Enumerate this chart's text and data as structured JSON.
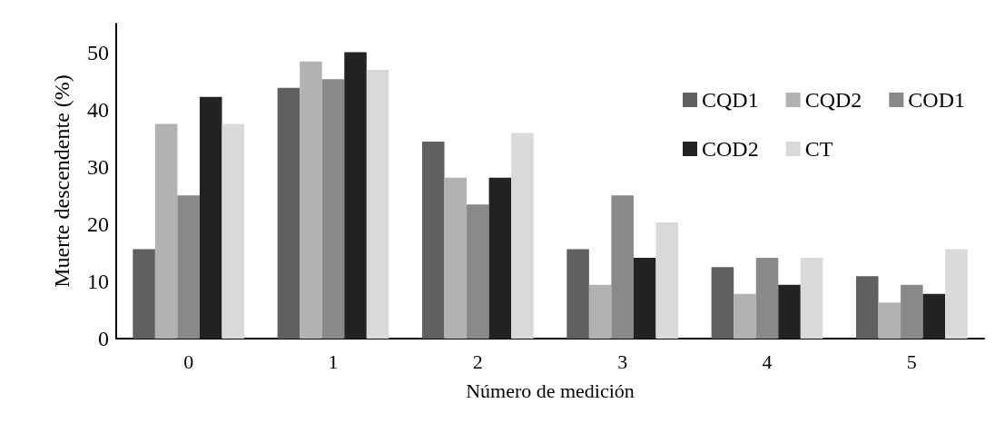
{
  "chart_data": {
    "type": "bar",
    "xlabel": "Número de medición",
    "ylabel": "Muerte descendente (%)",
    "categories": [
      "0",
      "1",
      "2",
      "3",
      "4",
      "5"
    ],
    "series": [
      {
        "name": "CQD1",
        "color": "#606060",
        "values": [
          15.6,
          43.8,
          34.4,
          15.6,
          12.5,
          10.9
        ]
      },
      {
        "name": "CQD2",
        "color": "#b2b2b2",
        "values": [
          37.5,
          48.4,
          28.1,
          9.4,
          7.8,
          6.3
        ]
      },
      {
        "name": "COD1",
        "color": "#898989",
        "values": [
          25,
          45.3,
          23.4,
          25,
          14.1,
          9.4
        ]
      },
      {
        "name": "COD2",
        "color": "#222222",
        "values": [
          42.2,
          50,
          28.1,
          14.1,
          9.4,
          7.8
        ]
      },
      {
        "name": "CT",
        "color": "#d9d9d9",
        "values": [
          37.5,
          46.9,
          35.9,
          20.3,
          14.1,
          15.6
        ]
      }
    ],
    "ylim": [
      0,
      55
    ],
    "yticks": [
      0,
      10,
      20,
      30,
      40,
      50
    ],
    "grid": false,
    "legend": "top right"
  }
}
